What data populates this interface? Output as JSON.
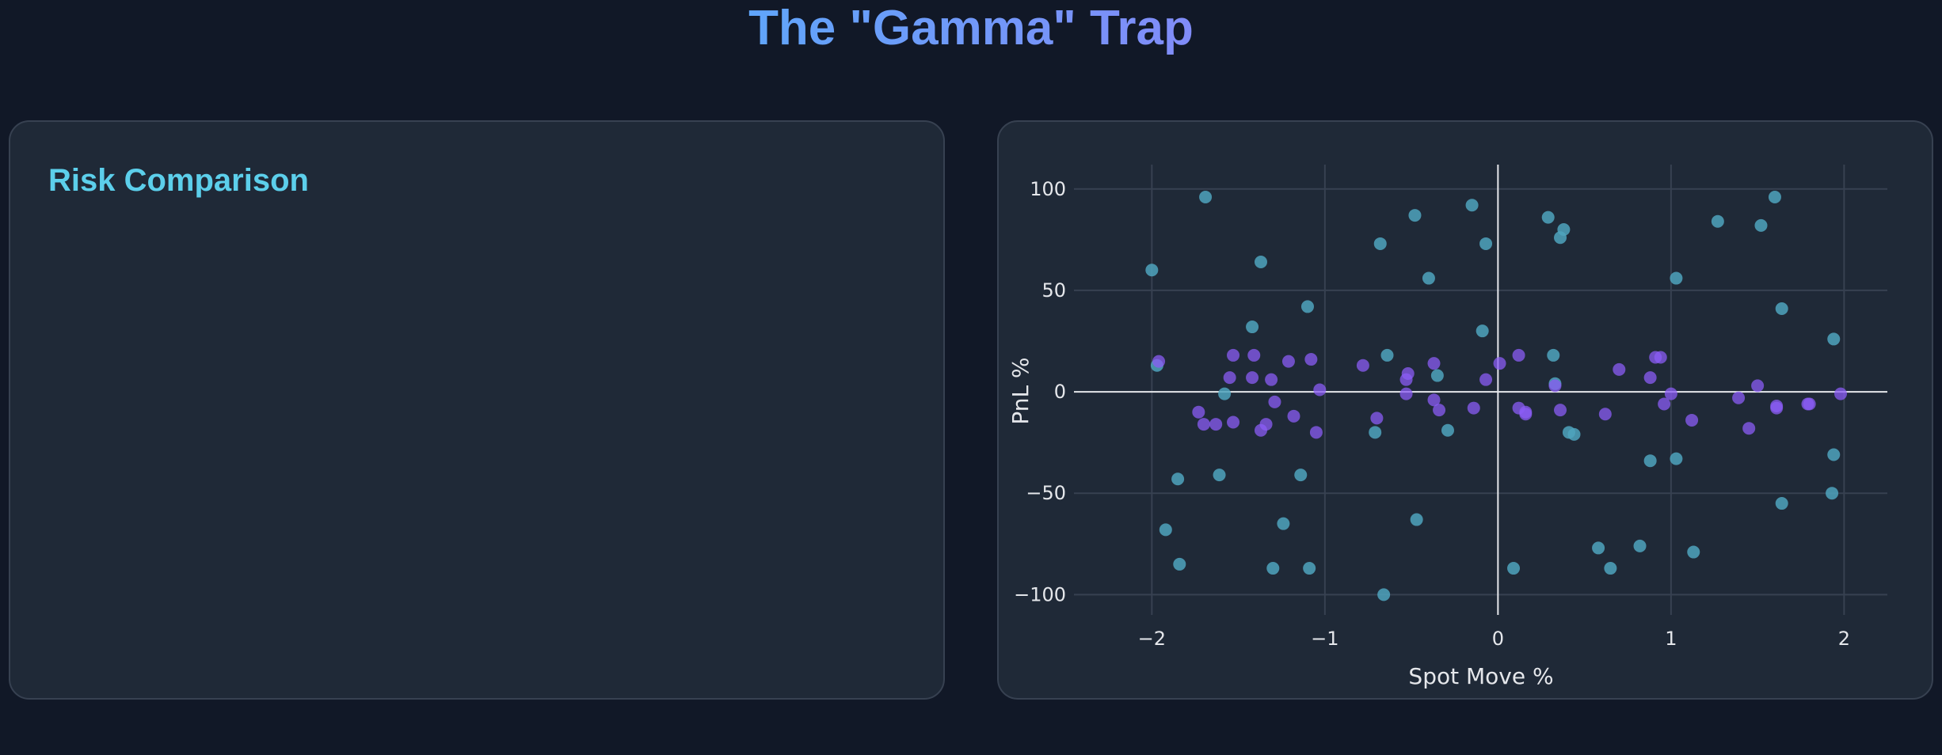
{
  "header": {
    "title": "The \"Gamma\" Trap"
  },
  "left_panel": {
    "heading": "Risk Comparison"
  },
  "colors": {
    "background": "#111827",
    "card": "#1f2937",
    "heading": "#5ccfeb",
    "title_gradient": [
      "#60a5fa",
      "#818cf8"
    ],
    "grid": "#374151",
    "zeroline": "#e5e7eb"
  },
  "chart_data": {
    "type": "scatter",
    "title": "",
    "xlabel": "Spot Move %",
    "ylabel": "PnL %",
    "xlim": [
      -2.45,
      2.25
    ],
    "ylim": [
      -110,
      112
    ],
    "xticks": [
      -2,
      -1,
      0,
      1,
      2
    ],
    "xtick_labels": [
      "−2",
      "−1",
      "0",
      "1",
      "2"
    ],
    "yticks": [
      -100,
      -50,
      0,
      50,
      100
    ],
    "ytick_labels": [
      "−100",
      "−50",
      "0",
      "50",
      "100"
    ],
    "grid": true,
    "legend": "none",
    "series": [
      {
        "color": "#4fa3bd",
        "opacity": 0.85,
        "x": [
          -2.0,
          -1.69,
          -1.97,
          -1.85,
          -1.92,
          -1.84,
          -1.58,
          -1.61,
          -1.37,
          -1.42,
          -1.1,
          -1.14,
          -1.24,
          -1.3,
          -1.09,
          -0.68,
          -0.64,
          -0.71,
          -0.4,
          -0.35,
          -0.47,
          -0.66,
          -0.48,
          -0.29,
          -0.15,
          -0.07,
          -0.09,
          0.29,
          0.32,
          0.36,
          0.38,
          0.33,
          0.41,
          0.44,
          0.09,
          0.58,
          0.65,
          0.82,
          0.88,
          1.03,
          1.03,
          1.13,
          1.27,
          1.52,
          1.6,
          1.64,
          1.64,
          1.94,
          1.94,
          1.93
        ],
        "y": [
          60,
          96,
          13,
          -43,
          -68,
          -85,
          -1,
          -41,
          64,
          32,
          42,
          -41,
          -65,
          -87,
          -87,
          73,
          18,
          -20,
          56,
          8,
          -63,
          -100,
          87,
          -19,
          92,
          73,
          30,
          86,
          18,
          76,
          80,
          4,
          -20,
          -21,
          -87,
          -77,
          -87,
          -76,
          -34,
          56,
          -33,
          -79,
          84,
          82,
          96,
          41,
          -55,
          26,
          -31,
          -50
        ]
      },
      {
        "color": "#8b5cf6",
        "opacity": 0.75,
        "x": [
          -1.96,
          -1.73,
          -1.7,
          -1.63,
          -1.55,
          -1.53,
          -1.53,
          -1.42,
          -1.41,
          -1.37,
          -1.34,
          -1.31,
          -1.29,
          -1.21,
          -1.18,
          -1.08,
          -1.05,
          -1.03,
          -0.78,
          -0.7,
          -0.53,
          -0.52,
          -0.53,
          -0.37,
          -0.37,
          -0.34,
          -0.14,
          -0.07,
          0.01,
          0.12,
          0.12,
          0.16,
          0.16,
          0.33,
          0.36,
          0.62,
          0.7,
          0.88,
          0.91,
          0.94,
          0.96,
          1.0,
          1.12,
          1.39,
          1.45,
          1.5,
          1.61,
          1.61,
          1.79,
          1.8,
          1.98
        ],
        "y": [
          15,
          -10,
          -16,
          -16,
          7,
          18,
          -15,
          7,
          18,
          -19,
          -16,
          6,
          -5,
          15,
          -12,
          16,
          -20,
          1,
          13,
          -13,
          6,
          9,
          -1,
          14,
          -4,
          -9,
          -8,
          6,
          14,
          18,
          -8,
          -10,
          -11,
          3,
          -9,
          -11,
          11,
          7,
          17,
          17,
          -6,
          -1,
          -14,
          -3,
          -18,
          3,
          -7,
          -8,
          -6,
          -6,
          -1
        ]
      }
    ]
  }
}
